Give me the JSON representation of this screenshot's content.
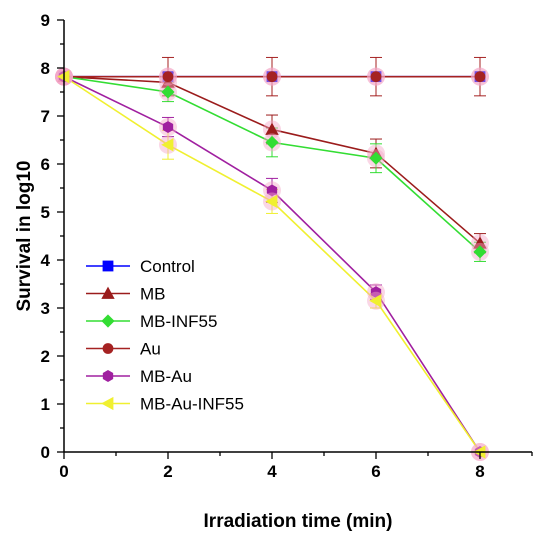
{
  "chart_data": {
    "type": "line",
    "title": "",
    "xlabel": "Irradiation time (min)",
    "ylabel": "Survival in log10",
    "xlim": [
      0,
      9
    ],
    "ylim": [
      0,
      9
    ],
    "xticks": [
      0,
      2,
      4,
      6,
      8
    ],
    "xminor": [
      1,
      3,
      5,
      7,
      9
    ],
    "yticks": [
      0,
      1,
      2,
      3,
      4,
      5,
      6,
      7,
      8,
      9
    ],
    "grid": false,
    "legend_position": "center-left",
    "series": [
      {
        "name": "Control",
        "color": "#0000ff",
        "marker": "square",
        "x": [
          0,
          2,
          4,
          6,
          8
        ],
        "y": [
          7.82,
          7.82,
          7.82,
          7.82,
          7.82
        ],
        "err": [
          0,
          0,
          0,
          0,
          0
        ]
      },
      {
        "name": "MB",
        "color": "#9b1c1c",
        "marker": "triangle-up",
        "x": [
          0,
          2,
          4,
          6,
          8
        ],
        "y": [
          7.82,
          7.7,
          6.72,
          6.22,
          4.35
        ],
        "err": [
          0,
          0.2,
          0.3,
          0.3,
          0.2
        ]
      },
      {
        "name": "MB-INF55",
        "color": "#33dd33",
        "marker": "diamond",
        "x": [
          0,
          2,
          4,
          6,
          8
        ],
        "y": [
          7.82,
          7.5,
          6.45,
          6.12,
          4.17
        ],
        "err": [
          0,
          0.2,
          0.3,
          0.3,
          0.2
        ]
      },
      {
        "name": "Au",
        "color": "#a52222",
        "marker": "circle",
        "x": [
          0,
          2,
          4,
          6,
          8
        ],
        "y": [
          7.82,
          7.82,
          7.82,
          7.82,
          7.82
        ],
        "err": [
          0,
          0.4,
          0.4,
          0.4,
          0.4
        ]
      },
      {
        "name": "MB-Au",
        "color": "#a020a0",
        "marker": "hexagon",
        "x": [
          0,
          2,
          4,
          6,
          8
        ],
        "y": [
          7.82,
          6.77,
          5.45,
          3.33,
          0.0
        ],
        "err": [
          0,
          0.2,
          0.25,
          0.15,
          0
        ]
      },
      {
        "name": "MB-Au-INF55",
        "color": "#f0f030",
        "marker": "triangle-left",
        "x": [
          0,
          2,
          4,
          6,
          8
        ],
        "y": [
          7.82,
          6.4,
          5.22,
          3.15,
          0.0
        ],
        "err": [
          0,
          0.3,
          0.25,
          0.15,
          0
        ]
      }
    ]
  }
}
